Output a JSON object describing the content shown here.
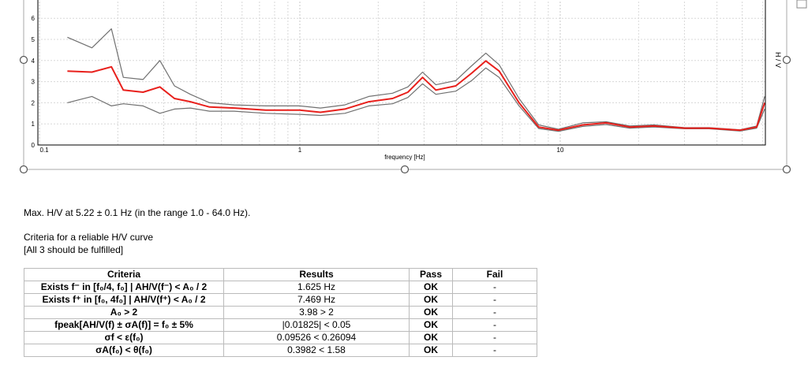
{
  "chart_data": {
    "type": "line",
    "xlabel": "frequency [Hz]",
    "ylabel": "H / V",
    "xscale": "log",
    "xlim": [
      0.1,
      64
    ],
    "ylim": [
      0,
      7
    ],
    "xticks": [
      0.1,
      1,
      10
    ],
    "yticks": [
      0,
      1,
      2,
      3,
      4,
      5,
      6
    ],
    "grid": true,
    "x": [
      0.128,
      0.159,
      0.189,
      0.21,
      0.25,
      0.29,
      0.33,
      0.38,
      0.45,
      0.56,
      0.74,
      1.0,
      1.2,
      1.49,
      1.84,
      2.27,
      2.6,
      2.96,
      3.33,
      3.97,
      4.57,
      5.18,
      5.83,
      6.95,
      8.27,
      9.85,
      12.2,
      15.0,
      18.5,
      22.9,
      30.1,
      37.3,
      49.1,
      56.8,
      61.0
    ],
    "series": [
      {
        "color": "#707070",
        "values": [
          5.1,
          4.6,
          5.5,
          3.2,
          3.1,
          4.0,
          2.8,
          2.4,
          2.0,
          1.9,
          1.85,
          1.85,
          1.75,
          1.9,
          2.3,
          2.45,
          2.75,
          3.45,
          2.85,
          3.05,
          3.75,
          4.35,
          3.8,
          2.2,
          0.95,
          0.75,
          1.05,
          1.1,
          0.9,
          0.95,
          0.82,
          0.82,
          0.72,
          0.9,
          2.3
        ]
      },
      {
        "color": "#707070",
        "values": [
          2.0,
          2.3,
          1.85,
          1.95,
          1.85,
          1.5,
          1.7,
          1.75,
          1.6,
          1.6,
          1.5,
          1.45,
          1.4,
          1.5,
          1.85,
          1.95,
          2.25,
          2.9,
          2.4,
          2.55,
          3.05,
          3.65,
          3.2,
          1.85,
          0.78,
          0.65,
          0.88,
          0.97,
          0.8,
          0.85,
          0.77,
          0.77,
          0.66,
          0.8,
          1.7
        ]
      },
      {
        "color": "#e8201c",
        "values": [
          3.5,
          3.45,
          3.7,
          2.6,
          2.5,
          2.75,
          2.2,
          2.05,
          1.8,
          1.75,
          1.65,
          1.65,
          1.55,
          1.7,
          2.05,
          2.2,
          2.5,
          3.2,
          2.6,
          2.8,
          3.4,
          3.98,
          3.5,
          2.0,
          0.85,
          0.7,
          0.95,
          1.05,
          0.85,
          0.9,
          0.8,
          0.8,
          0.7,
          0.85,
          2.0
        ]
      }
    ]
  },
  "document": {
    "summary": "Max. H/V at 5.22 ± 0.1 Hz (in the range 1.0 - 64.0 Hz).",
    "criteria_title": "Criteria for a reliable H/V curve",
    "criteria_note": "[All 3 should be fulfilled]",
    "table": {
      "header": [
        "Criteria",
        "Results",
        "Pass",
        "Fail"
      ],
      "rows": [
        [
          "Exists f⁻ in [f₀/4, f₀] | AH/V(f⁻) < A₀ / 2",
          "1.625 Hz",
          "OK",
          "-"
        ],
        [
          "Exists f⁺ in [f₀, 4f₀] | AH/V(f⁺) < A₀ / 2",
          "7.469 Hz",
          "OK",
          "-"
        ],
        [
          "A₀ > 2",
          "3.98 > 2",
          "OK",
          "-"
        ],
        [
          "fpeak[AH/V(f) ± σA(f)] = f₀ ± 5%",
          "|0.01825| < 0.05",
          "OK",
          "-"
        ],
        [
          "σf < ε(f₀)",
          "0.09526 < 0.26094",
          "OK",
          "-"
        ],
        [
          "σA(f₀) < θ(f₀)",
          "0.3982 < 1.58",
          "OK",
          "-"
        ]
      ]
    }
  }
}
